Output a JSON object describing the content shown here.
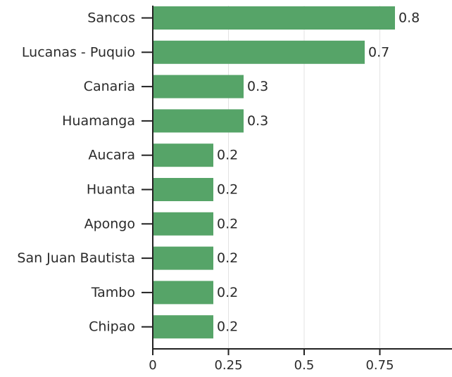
{
  "chart_data": {
    "type": "bar",
    "orientation": "horizontal",
    "categories": [
      "Sancos",
      "Lucanas - Puquio",
      "Canaria",
      "Huamanga",
      "Aucara",
      "Huanta",
      "Apongo",
      "San Juan Bautista",
      "Tambo",
      "Chipao"
    ],
    "values": [
      0.8,
      0.7,
      0.3,
      0.3,
      0.2,
      0.2,
      0.2,
      0.2,
      0.2,
      0.2
    ],
    "value_labels": [
      "0.8",
      "0.7",
      "0.3",
      "0.3",
      "0.2",
      "0.2",
      "0.2",
      "0.2",
      "0.2",
      "0.2"
    ],
    "x_ticks": [
      0,
      0.25,
      0.5,
      0.75
    ],
    "x_tick_labels": [
      "0",
      "0.25",
      "0.5",
      "0.75"
    ],
    "xlim": [
      0,
      1.0
    ],
    "grid": "vertical",
    "bar_color": "#56a468",
    "title": "",
    "xlabel": "",
    "ylabel": ""
  }
}
